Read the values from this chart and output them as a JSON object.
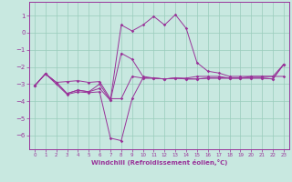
{
  "xlabel": "Windchill (Refroidissement éolien,°C)",
  "bg_color": "#c8e8e0",
  "grid_color": "#99ccbb",
  "line_color": "#993399",
  "xlim": [
    -0.5,
    23.5
  ],
  "ylim": [
    -6.8,
    1.8
  ],
  "yticks": [
    1,
    0,
    -1,
    -2,
    -3,
    -4,
    -5,
    -6
  ],
  "xticks": [
    0,
    1,
    2,
    3,
    4,
    5,
    6,
    7,
    8,
    9,
    10,
    11,
    12,
    13,
    14,
    15,
    16,
    17,
    18,
    19,
    20,
    21,
    22,
    23
  ],
  "s1_x": [
    0,
    1,
    2,
    3,
    4,
    5,
    6,
    7,
    8,
    9,
    10,
    11,
    12,
    13,
    14,
    15,
    16,
    17,
    18,
    19,
    20,
    21,
    22,
    23
  ],
  "s1_y": [
    -3.1,
    -2.4,
    -2.9,
    -3.55,
    -3.35,
    -3.45,
    -3.25,
    -3.95,
    -1.2,
    -1.55,
    -2.55,
    -2.65,
    -2.7,
    -2.65,
    -2.65,
    -2.55,
    -2.55,
    -2.55,
    -2.65,
    -2.65,
    -2.55,
    -2.55,
    -2.55,
    -2.55
  ],
  "s2_x": [
    0,
    1,
    2,
    3,
    4,
    5,
    6,
    7,
    8,
    9,
    10,
    11,
    12,
    13,
    14,
    15,
    16,
    17,
    18,
    19,
    20,
    21,
    22,
    23
  ],
  "s2_y": [
    -3.1,
    -2.4,
    -3.0,
    -3.6,
    -3.45,
    -3.5,
    -3.45,
    -6.15,
    -6.3,
    -3.85,
    -2.65,
    -2.65,
    -2.7,
    -2.65,
    -2.7,
    -2.7,
    -2.65,
    -2.65,
    -2.65,
    -2.65,
    -2.65,
    -2.65,
    -2.7,
    -1.85
  ],
  "s3_x": [
    0,
    1,
    2,
    3,
    4,
    5,
    6,
    7,
    8,
    9,
    10,
    11,
    12,
    13,
    14,
    15,
    16,
    17,
    18,
    19,
    20,
    21,
    22,
    23
  ],
  "s3_y": [
    -3.1,
    -2.4,
    -2.9,
    -2.85,
    -2.8,
    -2.9,
    -2.85,
    -3.85,
    -3.85,
    -2.55,
    -2.65,
    -2.65,
    -2.7,
    -2.65,
    -2.7,
    -2.7,
    -2.65,
    -2.65,
    -2.65,
    -2.65,
    -2.65,
    -2.65,
    -2.7,
    -1.85
  ],
  "s4_x": [
    0,
    1,
    2,
    3,
    4,
    5,
    6,
    7,
    8,
    9,
    10,
    11,
    12,
    13,
    14,
    15,
    16,
    17,
    18,
    19,
    20,
    21,
    22,
    23
  ],
  "s4_y": [
    -3.1,
    -2.4,
    -2.9,
    -3.55,
    -3.35,
    -3.45,
    -3.0,
    -3.95,
    0.45,
    0.1,
    0.45,
    0.95,
    0.45,
    1.05,
    0.25,
    -1.75,
    -2.25,
    -2.35,
    -2.55,
    -2.55,
    -2.55,
    -2.55,
    -2.55,
    -1.85
  ]
}
